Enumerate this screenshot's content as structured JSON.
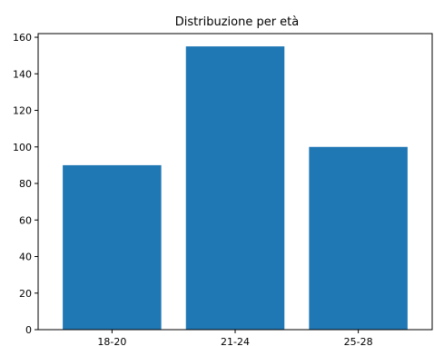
{
  "chart_data": {
    "type": "bar",
    "title": "Distribuzione per età",
    "xlabel": "",
    "ylabel": "",
    "categories": [
      "18-20",
      "21-24",
      "25-28"
    ],
    "values": [
      90,
      155,
      100
    ],
    "ylim": [
      0,
      162
    ],
    "yticks": [
      0,
      20,
      40,
      60,
      80,
      100,
      120,
      140,
      160
    ],
    "grid": false,
    "legend": "none",
    "bar_color": "#1f77b4"
  }
}
